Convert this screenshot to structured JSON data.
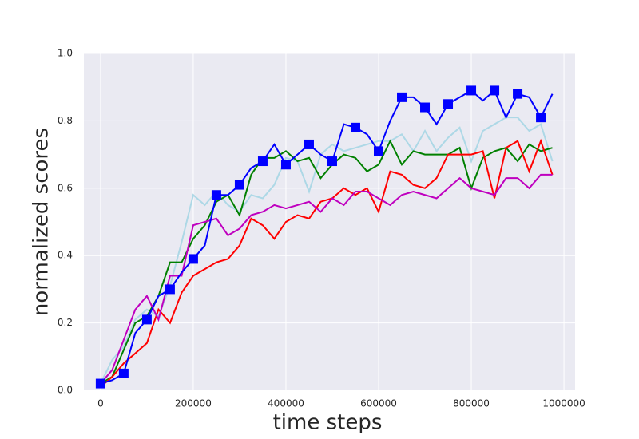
{
  "chart_data": {
    "type": "line",
    "xlabel": "time steps",
    "ylabel": "normalized scores",
    "x": [
      0,
      25000,
      50000,
      75000,
      100000,
      125000,
      150000,
      175000,
      200000,
      225000,
      250000,
      275000,
      300000,
      325000,
      350000,
      375000,
      400000,
      425000,
      450000,
      475000,
      500000,
      525000,
      550000,
      575000,
      600000,
      625000,
      650000,
      675000,
      700000,
      725000,
      750000,
      775000,
      800000,
      825000,
      850000,
      875000,
      900000,
      925000,
      950000,
      975000
    ],
    "series": [
      {
        "color": "#add8e6",
        "values": [
          0.02,
          0.09,
          0.13,
          0.21,
          0.24,
          0.22,
          0.31,
          0.44,
          0.58,
          0.55,
          0.59,
          0.55,
          0.53,
          0.58,
          0.57,
          0.61,
          0.69,
          0.68,
          0.59,
          0.7,
          0.73,
          0.71,
          0.72,
          0.73,
          0.74,
          0.74,
          0.76,
          0.71,
          0.77,
          0.71,
          0.75,
          0.78,
          0.68,
          0.77,
          0.79,
          0.81,
          0.81,
          0.77,
          0.79,
          0.68
        ]
      },
      {
        "color": "#008000",
        "values": [
          0.02,
          0.04,
          0.12,
          0.2,
          0.22,
          0.28,
          0.38,
          0.38,
          0.45,
          0.49,
          0.56,
          0.58,
          0.52,
          0.64,
          0.69,
          0.69,
          0.71,
          0.68,
          0.69,
          0.63,
          0.67,
          0.7,
          0.69,
          0.65,
          0.67,
          0.74,
          0.67,
          0.71,
          0.7,
          0.7,
          0.7,
          0.72,
          0.6,
          0.69,
          0.71,
          0.72,
          0.68,
          0.73,
          0.71,
          0.72
        ]
      },
      {
        "color": "#ff0000",
        "values": [
          0.01,
          0.04,
          0.08,
          0.11,
          0.14,
          0.24,
          0.2,
          0.29,
          0.34,
          0.36,
          0.38,
          0.39,
          0.43,
          0.51,
          0.49,
          0.45,
          0.5,
          0.52,
          0.51,
          0.56,
          0.57,
          0.6,
          0.58,
          0.6,
          0.53,
          0.65,
          0.64,
          0.61,
          0.6,
          0.63,
          0.7,
          0.7,
          0.7,
          0.71,
          0.57,
          0.72,
          0.74,
          0.65,
          0.74,
          0.64
        ]
      },
      {
        "color": "#bf00bf",
        "values": [
          0.02,
          0.06,
          0.15,
          0.24,
          0.28,
          0.21,
          0.34,
          0.34,
          0.49,
          0.5,
          0.51,
          0.46,
          0.48,
          0.52,
          0.53,
          0.55,
          0.54,
          0.55,
          0.56,
          0.53,
          0.57,
          0.55,
          0.59,
          0.59,
          0.57,
          0.55,
          0.58,
          0.59,
          0.58,
          0.57,
          0.6,
          0.63,
          0.6,
          0.59,
          0.58,
          0.63,
          0.63,
          0.6,
          0.64,
          0.64
        ]
      },
      {
        "color": "#0000ff",
        "marker": "square",
        "markevery": 2,
        "values": [
          0.02,
          0.03,
          0.05,
          0.17,
          0.21,
          0.28,
          0.3,
          0.35,
          0.39,
          0.43,
          0.58,
          0.58,
          0.61,
          0.66,
          0.68,
          0.73,
          0.67,
          0.7,
          0.73,
          0.7,
          0.68,
          0.79,
          0.78,
          0.76,
          0.71,
          0.8,
          0.87,
          0.87,
          0.84,
          0.79,
          0.85,
          0.87,
          0.89,
          0.86,
          0.89,
          0.81,
          0.88,
          0.87,
          0.81,
          0.88
        ]
      }
    ],
    "xlim": [
      -36000,
      1024000
    ],
    "ylim": [
      0,
      1
    ],
    "xticks": [
      0,
      200000,
      400000,
      600000,
      800000,
      1000000
    ],
    "yticks": [
      {
        "value": 0,
        "label": "0.0"
      },
      {
        "value": 0.2,
        "label": "0.2"
      },
      {
        "value": 0.4,
        "label": "0.4"
      },
      {
        "value": 0.6,
        "label": "0.6"
      },
      {
        "value": 0.8,
        "label": "0.8"
      },
      {
        "value": 1,
        "label": "1.0"
      }
    ],
    "grid": true
  }
}
